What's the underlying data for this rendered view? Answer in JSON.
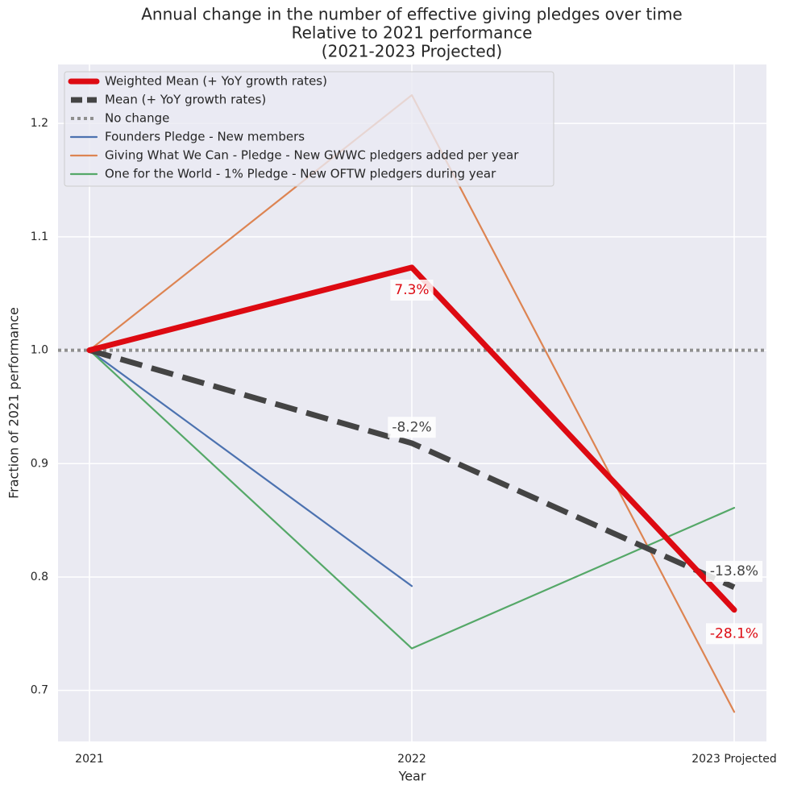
{
  "chart_data": {
    "type": "line",
    "title": "Annual change in the number of effective giving pledges over time",
    "subtitle_lines": [
      "Relative to 2021 performance",
      "(2021-2023 Projected)"
    ],
    "xlabel": "Year",
    "ylabel": "Fraction of 2021 performance",
    "categories": [
      "2021",
      "2022",
      "2023 Projected"
    ],
    "ylim": [
      0.655,
      1.252
    ],
    "yticks": [
      0.7,
      0.8,
      0.9,
      1.0,
      1.1,
      1.2
    ],
    "ytick_labels": [
      "0.7",
      "0.8",
      "0.9",
      "1.0",
      "1.1",
      "1.2"
    ],
    "grid": true,
    "legend_position": "top-left",
    "series": [
      {
        "name": "Weighted Mean (+ YoY growth rates)",
        "color": "#dd0a12",
        "style": "solid",
        "weight": "heavy",
        "values": [
          1.0,
          1.073,
          0.771
        ]
      },
      {
        "name": "Mean (+ YoY growth rates)",
        "color": "#444444",
        "style": "dashed",
        "weight": "heavy",
        "values": [
          1.0,
          0.918,
          0.791
        ]
      },
      {
        "name": "No change",
        "color": "#8f8f8f",
        "style": "dotted",
        "weight": "medium",
        "values": [
          1.0,
          1.0,
          1.0
        ],
        "span": "full"
      },
      {
        "name": "Founders Pledge - New members",
        "color": "#4c72b0",
        "style": "solid",
        "weight": "thin",
        "values": [
          1.0,
          0.792,
          null
        ]
      },
      {
        "name": "Giving What We Can - Pledge - New GWWC pledgers added per year",
        "color": "#dd8452",
        "style": "solid",
        "weight": "thin",
        "values": [
          1.0,
          1.225,
          0.681
        ]
      },
      {
        "name": "One for the World - 1% Pledge - New OFTW pledgers during year",
        "color": "#55a868",
        "style": "solid",
        "weight": "thin",
        "values": [
          1.0,
          0.737,
          0.861
        ]
      }
    ],
    "annotations": [
      {
        "text": "7.3%",
        "x": 1,
        "y": 1.053,
        "color": "#dd0a12"
      },
      {
        "text": "-8.2%",
        "x": 1,
        "y": 0.932,
        "color": "#444444"
      },
      {
        "text": "-13.8%",
        "x": 2,
        "y": 0.805,
        "color": "#444444"
      },
      {
        "text": "-28.1%",
        "x": 2,
        "y": 0.75,
        "color": "#dd0a12"
      }
    ]
  }
}
